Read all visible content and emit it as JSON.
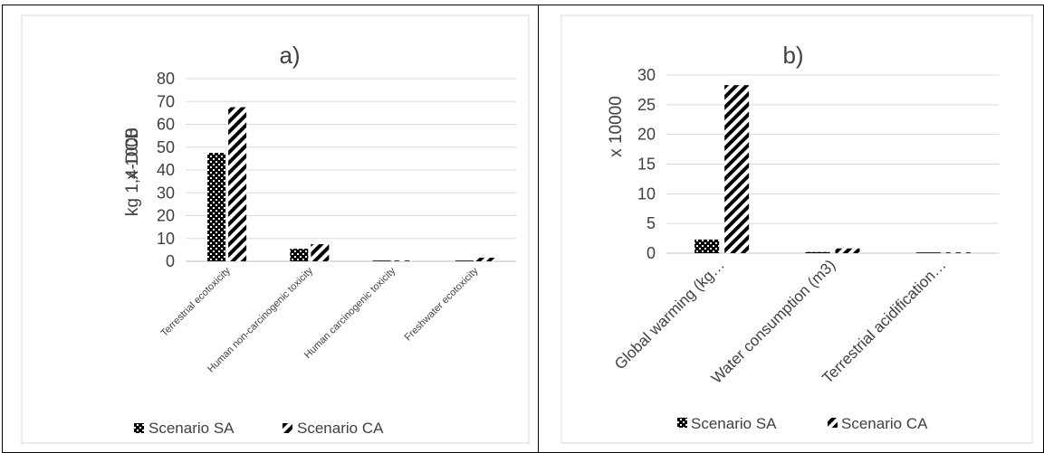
{
  "chart_data": [
    {
      "type": "bar",
      "title": "a)",
      "ylabel": "kg 1,4-DCB",
      "ylabel_overlay": "x 1000",
      "ylim": [
        0,
        80
      ],
      "yticks": [
        0,
        10,
        20,
        30,
        40,
        50,
        60,
        70,
        80
      ],
      "categories": [
        "Terrestrial ecotoxicity",
        "Human non-carcinogenic toxicity",
        "Human carcinogenic toxicity",
        "Freshwater ecotoxicity"
      ],
      "series": [
        {
          "name": "Scenario SA",
          "pattern": "checker",
          "values": [
            47.5,
            5.5,
            0.1,
            0.3
          ]
        },
        {
          "name": "Scenario CA",
          "pattern": "diagonal",
          "values": [
            67.5,
            7.5,
            0.3,
            1.6
          ]
        }
      ],
      "grid": true,
      "legend": "bottom"
    },
    {
      "type": "bar",
      "title": "b)",
      "ylabel": "x 10000",
      "ylim": [
        0,
        30
      ],
      "yticks": [
        0,
        5,
        10,
        15,
        20,
        25,
        30
      ],
      "categories": [
        "Global warming (kg…",
        "Water consumption (m3)",
        "Terrestrial acidification…"
      ],
      "series": [
        {
          "name": "Scenario SA",
          "pattern": "checker",
          "values": [
            2.3,
            0.2,
            0.02
          ]
        },
        {
          "name": "Scenario CA",
          "pattern": "diagonal",
          "values": [
            28.3,
            0.8,
            0.05
          ]
        }
      ],
      "grid": true,
      "legend": "bottom"
    }
  ],
  "colors": {
    "grid": "#d9d9d9",
    "axis": "#bfbfbf",
    "text": "#404040",
    "ink": "#000000"
  }
}
